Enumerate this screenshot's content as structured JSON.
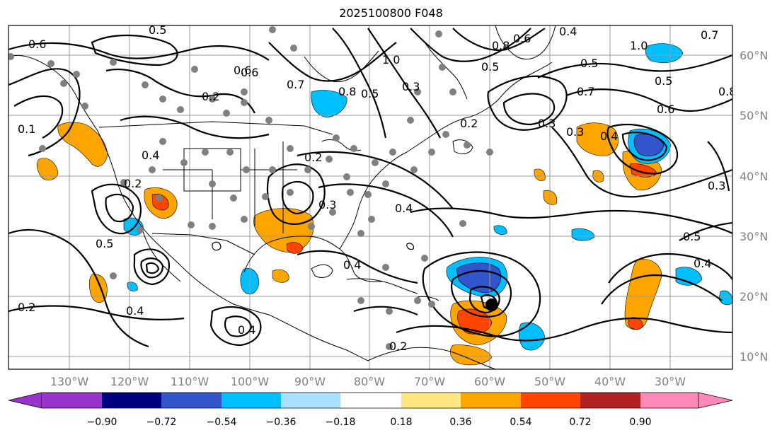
{
  "title": "2025100800 F048",
  "longitude_labels": [
    "130°W",
    "120°W",
    "110°W",
    "100°W",
    "90°W",
    "80°W",
    "70°W",
    "60°W",
    "50°W",
    "40°W",
    "30°W"
  ],
  "latitude_labels": [
    "60°N",
    "50°N",
    "40°N",
    "30°N",
    "20°N",
    "10°N"
  ],
  "colorbar": {
    "tick_labels": [
      "−0.90",
      "−0.72",
      "−0.54",
      "−0.36",
      "−0.18",
      "0.18",
      "0.36",
      "0.54",
      "0.72",
      "0.90"
    ],
    "colors": [
      "#9933cc",
      "#000080",
      "#3355cc",
      "#00bfff",
      "#aadfff",
      "#ffffff",
      "#ffe680",
      "#ffa500",
      "#ff4500",
      "#b22222",
      "#ff88bb"
    ]
  },
  "contour_labels": [
    "0.6",
    "0.5",
    "0.6",
    "0.7",
    "0.2",
    "0.1",
    "0.2",
    "0.5",
    "0.4",
    "0.2",
    "0.8",
    "1.0",
    "0.5",
    "0.3",
    "0.8",
    "0.6",
    "0.4",
    "0.5",
    "1.0",
    "0.7",
    "0.8",
    "0.6",
    "0.5",
    "0.3",
    "0.4",
    "0.7",
    "0.4",
    "0.2",
    "0.5",
    "0.4",
    "0.6",
    "0.5",
    "0.3",
    "0.3",
    "0.2",
    "0.4",
    "0.4",
    "0.3",
    "0.2",
    "0.4"
  ],
  "storm_marker": "hurricane-center",
  "fill_colors": {
    "orange": "#ffa500",
    "red": "#ff4500",
    "lightblue": "#00bfff",
    "blue": "#3355cc"
  }
}
